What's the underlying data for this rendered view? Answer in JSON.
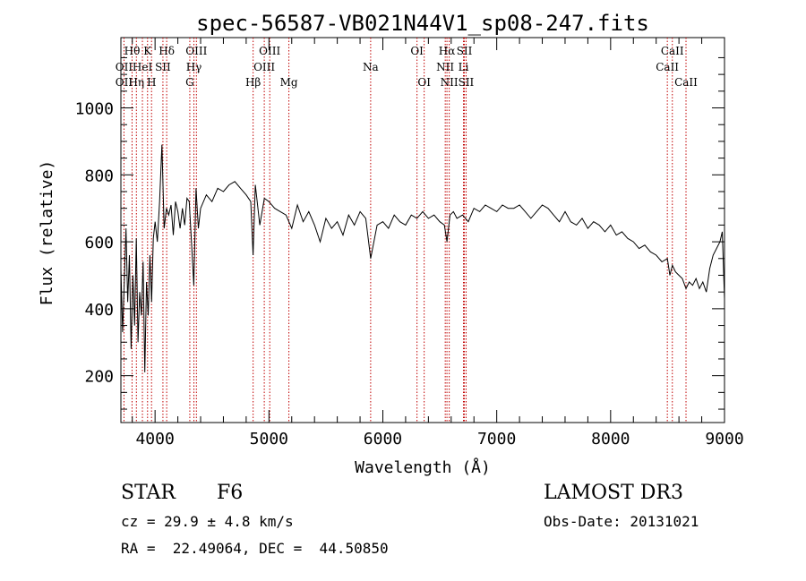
{
  "chart_data": {
    "type": "line",
    "title": "spec-56587-VB021N44V1_sp08-247.fits",
    "xlabel": "Wavelength (Å)",
    "ylabel": "Flux (relative)",
    "xlim": [
      3700,
      9000
    ],
    "ylim": [
      60,
      1210
    ],
    "xticks": [
      4000,
      5000,
      6000,
      7000,
      8000,
      9000
    ],
    "yticks": [
      200,
      400,
      600,
      800,
      1000
    ],
    "series": [
      {
        "name": "spectrum",
        "x": [
          3700,
          3715,
          3730,
          3745,
          3760,
          3775,
          3790,
          3805,
          3820,
          3835,
          3850,
          3865,
          3880,
          3895,
          3910,
          3925,
          3940,
          3955,
          3970,
          3985,
          4000,
          4020,
          4040,
          4060,
          4080,
          4100,
          4120,
          4140,
          4160,
          4180,
          4200,
          4220,
          4240,
          4260,
          4280,
          4300,
          4320,
          4340,
          4360,
          4380,
          4400,
          4450,
          4500,
          4550,
          4600,
          4650,
          4700,
          4750,
          4800,
          4840,
          4861,
          4880,
          4920,
          4960,
          5000,
          5050,
          5100,
          5150,
          5200,
          5250,
          5300,
          5350,
          5400,
          5450,
          5500,
          5550,
          5600,
          5650,
          5700,
          5750,
          5800,
          5850,
          5893,
          5950,
          6000,
          6050,
          6100,
          6150,
          6200,
          6250,
          6300,
          6350,
          6400,
          6450,
          6500,
          6540,
          6563,
          6590,
          6620,
          6650,
          6700,
          6750,
          6800,
          6850,
          6900,
          6950,
          7000,
          7050,
          7100,
          7150,
          7200,
          7250,
          7300,
          7350,
          7400,
          7450,
          7500,
          7550,
          7600,
          7650,
          7700,
          7750,
          7800,
          7850,
          7900,
          7950,
          8000,
          8050,
          8100,
          8150,
          8200,
          8250,
          8300,
          8350,
          8400,
          8450,
          8498,
          8520,
          8542,
          8570,
          8600,
          8630,
          8662,
          8690,
          8720,
          8750,
          8780,
          8810,
          8840,
          8870,
          8900,
          8930,
          8960,
          8980,
          9000
        ],
        "values": [
          520,
          330,
          480,
          640,
          420,
          560,
          280,
          500,
          350,
          610,
          300,
          450,
          380,
          540,
          210,
          480,
          380,
          560,
          420,
          610,
          660,
          600,
          720,
          890,
          640,
          700,
          680,
          710,
          620,
          720,
          690,
          640,
          700,
          650,
          730,
          720,
          600,
          470,
          760,
          640,
          700,
          740,
          720,
          760,
          750,
          770,
          780,
          760,
          740,
          720,
          560,
          770,
          650,
          730,
          720,
          700,
          690,
          680,
          640,
          710,
          660,
          690,
          650,
          600,
          670,
          640,
          660,
          620,
          680,
          650,
          690,
          670,
          550,
          650,
          660,
          640,
          680,
          660,
          650,
          680,
          670,
          690,
          670,
          680,
          660,
          650,
          600,
          680,
          690,
          670,
          680,
          660,
          700,
          690,
          710,
          700,
          690,
          710,
          700,
          700,
          710,
          690,
          670,
          690,
          710,
          700,
          680,
          660,
          690,
          660,
          650,
          670,
          640,
          660,
          650,
          630,
          650,
          620,
          630,
          610,
          600,
          580,
          590,
          570,
          560,
          540,
          550,
          500,
          530,
          510,
          500,
          490,
          460,
          480,
          470,
          490,
          460,
          480,
          450,
          520,
          560,
          580,
          600,
          630,
          430
        ]
      }
    ],
    "lines": [
      {
        "name": "OII",
        "wave": 3727,
        "row": 2
      },
      {
        "name": "Hθ",
        "wave": 3798,
        "row": 1
      },
      {
        "name": "OII",
        "wave": 3727,
        "row": 3
      },
      {
        "name": "Hη",
        "wave": 3836,
        "row": 3
      },
      {
        "name": "HeI",
        "wave": 3889,
        "row": 2
      },
      {
        "name": "K",
        "wave": 3934,
        "row": 1
      },
      {
        "name": "H",
        "wave": 3969,
        "row": 3
      },
      {
        "name": "SII",
        "wave": 4069,
        "row": 2
      },
      {
        "name": "Hδ",
        "wave": 4102,
        "row": 1
      },
      {
        "name": "G",
        "wave": 4305,
        "row": 3
      },
      {
        "name": "Hγ",
        "wave": 4341,
        "row": 2
      },
      {
        "name": "OIII",
        "wave": 4363,
        "row": 1
      },
      {
        "name": "Hβ",
        "wave": 4861,
        "row": 3
      },
      {
        "name": "OIII",
        "wave": 4959,
        "row": 2
      },
      {
        "name": "OIII",
        "wave": 5007,
        "row": 1
      },
      {
        "name": "Mg",
        "wave": 5175,
        "row": 3
      },
      {
        "name": "Na",
        "wave": 5893,
        "row": 2
      },
      {
        "name": "OI",
        "wave": 6300,
        "row": 1
      },
      {
        "name": "OI",
        "wave": 6363,
        "row": 3
      },
      {
        "name": "NII",
        "wave": 6548,
        "row": 2
      },
      {
        "name": "Hα",
        "wave": 6563,
        "row": 1
      },
      {
        "name": "NII",
        "wave": 6583,
        "row": 3
      },
      {
        "name": "SII",
        "wave": 6716,
        "row": 1
      },
      {
        "name": "Li",
        "wave": 6708,
        "row": 2
      },
      {
        "name": "SII",
        "wave": 6731,
        "row": 3
      },
      {
        "name": "CaII",
        "wave": 8498,
        "row": 2
      },
      {
        "name": "CaII",
        "wave": 8542,
        "row": 1
      },
      {
        "name": "CaII",
        "wave": 8662,
        "row": 3
      }
    ]
  },
  "info": {
    "class": "STAR",
    "subclass": "F6",
    "survey": "LAMOST DR3",
    "cz": "cz = 29.9 ± 4.8 km/s",
    "obsdate": "Obs-Date: 20131021",
    "radec": "RA =  22.49064, DEC =  44.50850"
  }
}
